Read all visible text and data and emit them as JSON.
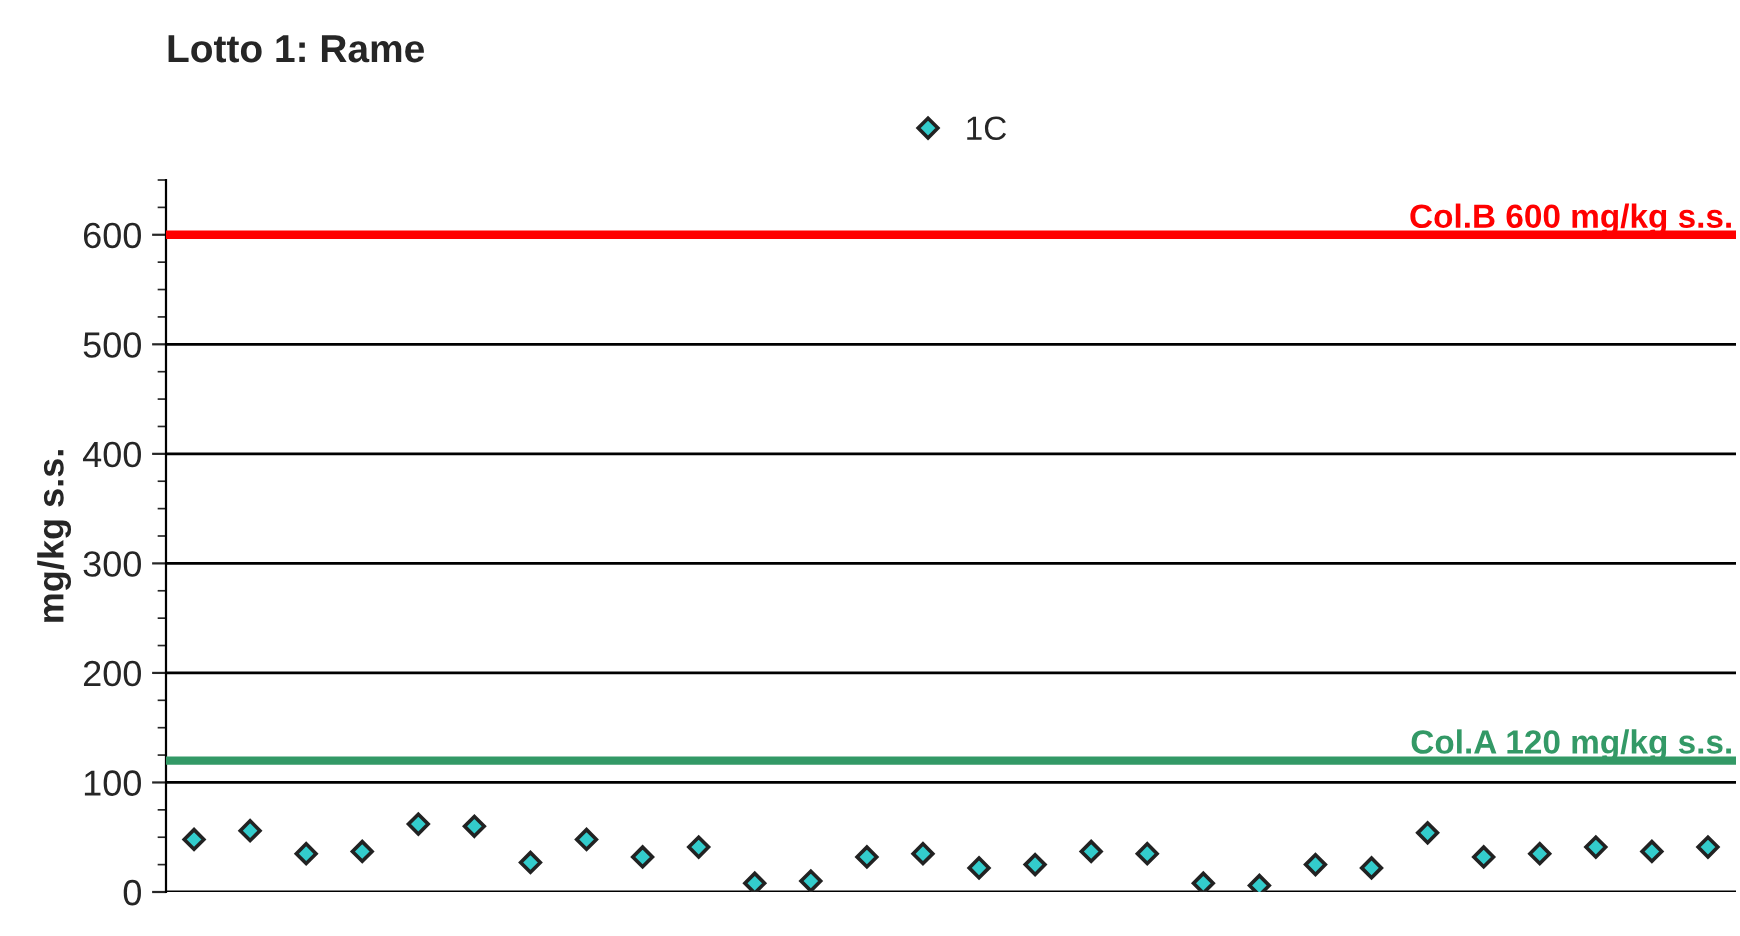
{
  "chart_data": {
    "type": "scatter",
    "title": "Lotto 1: Rame",
    "ylabel": "mg/kg s.s.",
    "categories": [
      null,
      null,
      null,
      null,
      null,
      null,
      null,
      null,
      null,
      null,
      null,
      null,
      null,
      null,
      null,
      null,
      null,
      null,
      null,
      null,
      null,
      null,
      null,
      null,
      null,
      null,
      null,
      null
    ],
    "series": [
      {
        "name": "1C",
        "color": "#33cccc",
        "values": [
          48,
          56,
          35,
          37,
          62,
          60,
          27,
          48,
          32,
          41,
          8,
          10,
          32,
          35,
          22,
          25,
          37,
          35,
          8,
          6,
          25,
          22,
          54,
          32,
          35,
          41,
          37,
          41
        ]
      }
    ],
    "ylim": [
      0,
      650
    ],
    "yticks": [
      0,
      100,
      200,
      300,
      400,
      500,
      600
    ],
    "ref_lines": [
      {
        "axis": "y",
        "value": 600,
        "label": "Col.B 600 mg/kg s.s.",
        "color": "#ff0000"
      },
      {
        "axis": "y",
        "value": 120,
        "label": "Col.A 120 mg/kg s.s.",
        "color": "#339966"
      }
    ],
    "grid": "y",
    "legend": "top",
    "marker": "diamond"
  }
}
